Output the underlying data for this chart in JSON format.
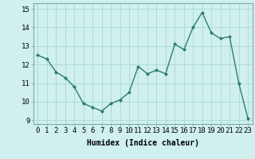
{
  "x": [
    0,
    1,
    2,
    3,
    4,
    5,
    6,
    7,
    8,
    9,
    10,
    11,
    12,
    13,
    14,
    15,
    16,
    17,
    18,
    19,
    20,
    21,
    22,
    23
  ],
  "y": [
    12.5,
    12.3,
    11.6,
    11.3,
    10.8,
    9.9,
    9.7,
    9.5,
    9.9,
    10.1,
    10.5,
    11.9,
    11.5,
    11.7,
    11.5,
    13.1,
    12.8,
    14.0,
    14.8,
    13.7,
    13.4,
    13.5,
    11.0,
    9.1
  ],
  "line_color": "#2d7d6e",
  "marker": "D",
  "marker_size": 2.0,
  "line_width": 1.0,
  "bg_color": "#cff0ee",
  "grid_color": "#aad8d4",
  "xlabel": "Humidex (Indice chaleur)",
  "xlabel_fontsize": 7,
  "tick_fontsize": 6.5,
  "xlim": [
    -0.5,
    23.5
  ],
  "ylim": [
    8.8,
    15.3
  ],
  "yticks": [
    9,
    10,
    11,
    12,
    13,
    14,
    15
  ],
  "xticks": [
    0,
    1,
    2,
    3,
    4,
    5,
    6,
    7,
    8,
    9,
    10,
    11,
    12,
    13,
    14,
    15,
    16,
    17,
    18,
    19,
    20,
    21,
    22,
    23
  ]
}
